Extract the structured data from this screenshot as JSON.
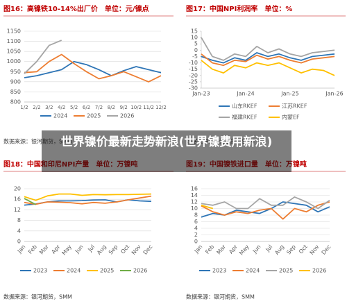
{
  "overlay": {
    "title": "世界镍价最新走势新浪(世界镍费用新浪)"
  },
  "chart_data": [
    {
      "type": "line",
      "title": "图16：高镍铁10-14%出厂价　单位：元/镍点",
      "categories": [
        "1/2",
        "2/2",
        "3/2",
        "4/2",
        "5/2",
        "6/2",
        "7/2",
        "8/2",
        "9/2",
        "10/2",
        "11/2",
        "12/2"
      ],
      "series": [
        {
          "name": "2024",
          "color": "#2e75b6",
          "values": [
            920,
            930,
            945,
            960,
            1000,
            985,
            960,
            930,
            955,
            975,
            960,
            945
          ]
        },
        {
          "name": "2025",
          "color": "#ed7d31",
          "values": [
            945,
            950,
            1000,
            1035,
            990,
            950,
            915,
            930,
            950,
            925,
            900,
            930
          ]
        },
        {
          "name": "2026",
          "color": "#a5a5a5",
          "values": [
            940,
            1000,
            1080,
            1105,
            null,
            null,
            null,
            null,
            null,
            null,
            null,
            null
          ]
        }
      ],
      "ylim": [
        800,
        1150
      ],
      "yticks": [
        800,
        850,
        900,
        950,
        1000,
        1050,
        1100,
        1150
      ],
      "grid": true,
      "source": "数据来源：银河期货，SMM"
    },
    {
      "type": "line",
      "title": "图17：中国NPI利润率　单位：%",
      "categories": [
        "Jan-23",
        null,
        null,
        null,
        "Jan-24",
        null,
        null,
        null,
        "Jan-25",
        null,
        null,
        null,
        "Jan-26"
      ],
      "series": [
        {
          "name": "山东RKEF",
          "color": "#2e75b6",
          "values": [
            -5,
            -8,
            -10,
            -6,
            -8,
            -2,
            -5,
            -3,
            -6,
            -8,
            -5,
            -4,
            -3
          ]
        },
        {
          "name": "江苏RKEF",
          "color": "#ed7d31",
          "values": [
            -3,
            -10,
            -12,
            -8,
            -9,
            -4,
            -7,
            -5,
            -8,
            -10,
            -7,
            -6,
            -5
          ]
        },
        {
          "name": "福建RKEF",
          "color": "#a5a5a5",
          "values": [
            10,
            -5,
            -8,
            -3,
            -5,
            3,
            -2,
            1,
            -3,
            -5,
            -2,
            -1,
            0
          ]
        },
        {
          "name": "内蒙EF",
          "color": "#ffc000",
          "values": [
            -8,
            -15,
            -18,
            -12,
            -14,
            -10,
            -12,
            -10,
            -14,
            -18,
            -15,
            -16,
            -20
          ]
        }
      ],
      "ylim": [
        -30,
        15
      ],
      "yticks": [
        -30,
        -25,
        -20,
        -15,
        -10,
        -5,
        0,
        5,
        10,
        15
      ],
      "grid": false,
      "source": "数据来源：银河期货，SMM"
    },
    {
      "type": "line",
      "title": "图18：中国和印尼NPI产量　单位：万镍吨",
      "categories": [
        "Jan",
        "Feb",
        "Mar",
        "Apr",
        "May",
        "Jun",
        "Jul",
        "Aug",
        "Sep",
        "Oct",
        "Nov",
        "Dec"
      ],
      "series": [
        {
          "name": "2023",
          "color": "#2e75b6",
          "values": [
            13.8,
            14.2,
            15,
            15.4,
            15.4,
            15.5,
            15.7,
            15.8,
            15,
            15.8,
            15.4,
            15.2
          ]
        },
        {
          "name": "2024",
          "color": "#ed7d31",
          "values": [
            14.8,
            14.1,
            15,
            14.9,
            14.7,
            14.3,
            14.8,
            14.5,
            15,
            15.8,
            16.5,
            17.2
          ]
        },
        {
          "name": "2025",
          "color": "#ffc000",
          "values": [
            17,
            15.6,
            17.3,
            18,
            18,
            17.5,
            17.8,
            17.7,
            17.8,
            17.8,
            17.9,
            18
          ]
        },
        {
          "name": "2026",
          "color": "#70ad47",
          "values": [
            16.3,
            14,
            null,
            null,
            null,
            null,
            null,
            null,
            null,
            null,
            null,
            null
          ]
        }
      ],
      "ylim": [
        0,
        20
      ],
      "yticks": [
        0,
        4,
        8,
        12,
        16,
        20
      ],
      "grid": true,
      "source": "数据来源：银河期货，SMM"
    },
    {
      "type": "line",
      "title": "图19：中国镍铁进口量　单位：万镍吨",
      "categories": [
        "Jan",
        "Feb",
        "Mar",
        "Apr",
        "May",
        "Jun",
        "Jul",
        "Aug",
        "Sep",
        "Oct",
        "Nov",
        "Dec"
      ],
      "series": [
        {
          "name": "2023",
          "color": "#2e75b6",
          "values": [
            7.4,
            8.5,
            8,
            9.5,
            9,
            8.5,
            10,
            12,
            11.5,
            11,
            9,
            10.5
          ]
        },
        {
          "name": "2024",
          "color": "#ed7d31",
          "values": [
            10.8,
            9,
            8,
            9,
            8.5,
            9.5,
            10,
            6.8,
            10,
            9,
            11,
            12
          ]
        },
        {
          "name": "2025",
          "color": "#a5a5a5",
          "values": [
            11.5,
            11,
            12,
            10,
            10,
            13,
            11,
            11,
            13.5,
            12,
            10,
            12.5
          ]
        },
        {
          "name": "2026",
          "color": "#ffc000",
          "values": [
            11,
            10,
            null,
            null,
            null,
            null,
            null,
            null,
            null,
            null,
            null,
            null
          ]
        }
      ],
      "ylim": [
        0,
        16
      ],
      "yticks": [
        0,
        2,
        4,
        6,
        8,
        10,
        12,
        14,
        16
      ],
      "grid": true,
      "source": "数据来源：银河期货，SMM"
    }
  ]
}
